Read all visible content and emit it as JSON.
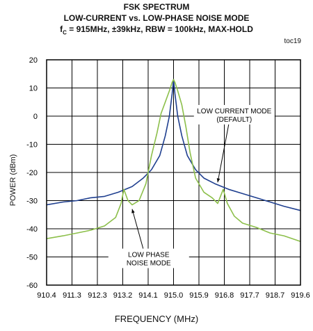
{
  "chart_data": {
    "type": "line",
    "title": "FSK SPECTRUM",
    "subtitle": "LOW-CURRENT vs. LOW-PHASE NOISE MODE",
    "conditions_main": "f",
    "conditions_sub": "C",
    "conditions_rest": " = 915MHz, ±39kHz, RBW = 100kHz, MAX-HOLD",
    "note": "toc19",
    "xlabel": "FREQUENCY (MHz)",
    "ylabel": "POWER (dBm)",
    "xlim": [
      910.4,
      919.6
    ],
    "ylim": [
      -60,
      20
    ],
    "x_ticks": [
      "910.4",
      "911.3",
      "912.3",
      "913.2",
      "914.1",
      "915.0",
      "915.9",
      "916.8",
      "917.7",
      "918.7",
      "919.6"
    ],
    "y_ticks": [
      "20",
      "10",
      "0",
      "-10",
      "-20",
      "-30",
      "-40",
      "-50",
      "-60"
    ],
    "grid": true,
    "series": [
      {
        "name": "LOW CURRENT MODE (DEFAULT)",
        "color": "#1f3f8f",
        "x": [
          910.4,
          911.0,
          911.5,
          912.0,
          912.5,
          913.0,
          913.5,
          913.9,
          914.2,
          914.5,
          914.7,
          914.85,
          914.95,
          915.0,
          915.05,
          915.15,
          915.3,
          915.5,
          915.8,
          916.1,
          916.5,
          917.0,
          917.5,
          918.0,
          918.5,
          919.0,
          919.6
        ],
        "y": [
          -31.5,
          -30.5,
          -30,
          -29,
          -28.5,
          -27,
          -25,
          -22,
          -19,
          -14,
          -7,
          0,
          8,
          13,
          8,
          0,
          -7,
          -14,
          -19,
          -22,
          -24,
          -26,
          -27.5,
          -29,
          -30.5,
          -32,
          -33.5
        ]
      },
      {
        "name": "LOW PHASE NOISE MODE",
        "color": "#8cbf4a",
        "x": [
          910.4,
          911.0,
          911.5,
          912.0,
          912.5,
          912.9,
          913.1,
          913.2,
          913.35,
          913.5,
          913.75,
          914.0,
          914.2,
          914.4,
          914.55,
          914.7,
          914.85,
          914.95,
          915.0,
          915.05,
          915.15,
          915.3,
          915.45,
          915.6,
          915.8,
          916.1,
          916.4,
          916.6,
          916.8,
          916.95,
          917.2,
          917.5,
          918.0,
          918.5,
          919.0,
          919.6
        ],
        "y": [
          -43.5,
          -42.5,
          -41.5,
          -40.5,
          -39,
          -36,
          -31,
          -26,
          -30,
          -31.5,
          -30,
          -24,
          -14,
          -6,
          1,
          5,
          9,
          12,
          13,
          12,
          9,
          4,
          -4,
          -13,
          -22,
          -27,
          -29,
          -31,
          -26,
          -31,
          -35.5,
          -38,
          -39.5,
          -41.5,
          -42.5,
          -44.5
        ]
      }
    ],
    "annotations": [
      {
        "line1": "LOW CURRENT MODE",
        "line2": "(DEFAULT)",
        "x": 917.2,
        "y": 0.5,
        "arrow_to": [
          916.6,
          -23.5
        ]
      },
      {
        "line1": "LOW PHASE",
        "line2": "NOISE MODE",
        "x": 914.1,
        "y": -50.5,
        "arrow_to": [
          913.5,
          -33
        ]
      }
    ]
  }
}
